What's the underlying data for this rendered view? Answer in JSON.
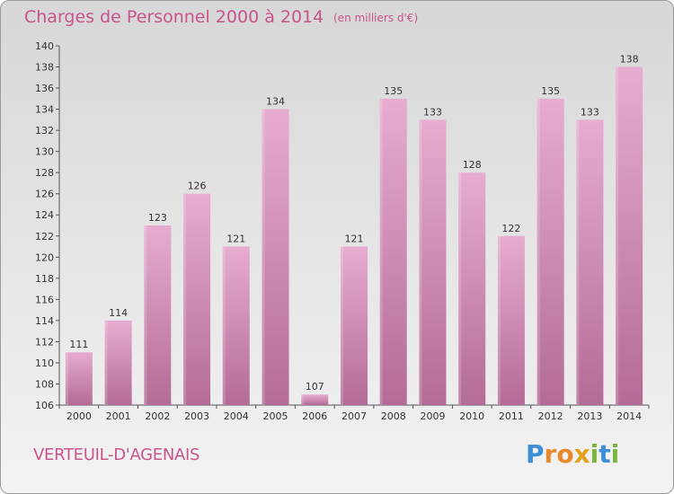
{
  "title": "Charges de Personnel 2000 à 2014",
  "unit_note": "(en milliers d'€)",
  "commune": "VERTEUIL-D'AGENAIS",
  "logo": {
    "text": "Proxiti",
    "letters": [
      {
        "ch": "P",
        "color": "#3a8fd6"
      },
      {
        "ch": "r",
        "color": "#e8892e"
      },
      {
        "ch": "o",
        "color": "#e8892e"
      },
      {
        "ch": "x",
        "color": "#e3a21c"
      },
      {
        "ch": "i",
        "color": "#7bb73c"
      },
      {
        "ch": "t",
        "color": "#3a8fd6"
      },
      {
        "ch": "i",
        "color": "#7bb73c"
      }
    ]
  },
  "colors": {
    "bar_top": "#e7acd0",
    "bar_bottom": "#b36c97",
    "text_accent": "#c8548b",
    "axis": "#555555"
  },
  "chart_data": {
    "type": "bar",
    "title": "Charges de Personnel 2000 à 2014",
    "categories": [
      "2000",
      "2001",
      "2002",
      "2003",
      "2004",
      "2005",
      "2006",
      "2007",
      "2008",
      "2009",
      "2010",
      "2011",
      "2012",
      "2013",
      "2014"
    ],
    "values": [
      111,
      114,
      123,
      126,
      121,
      134,
      107,
      121,
      135,
      133,
      128,
      122,
      135,
      133,
      138
    ],
    "ylim": [
      106,
      140
    ],
    "yticks": [
      106,
      108,
      110,
      112,
      114,
      116,
      118,
      120,
      122,
      124,
      126,
      128,
      130,
      132,
      134,
      136,
      138,
      140
    ],
    "grid": false,
    "data_labels": true
  }
}
